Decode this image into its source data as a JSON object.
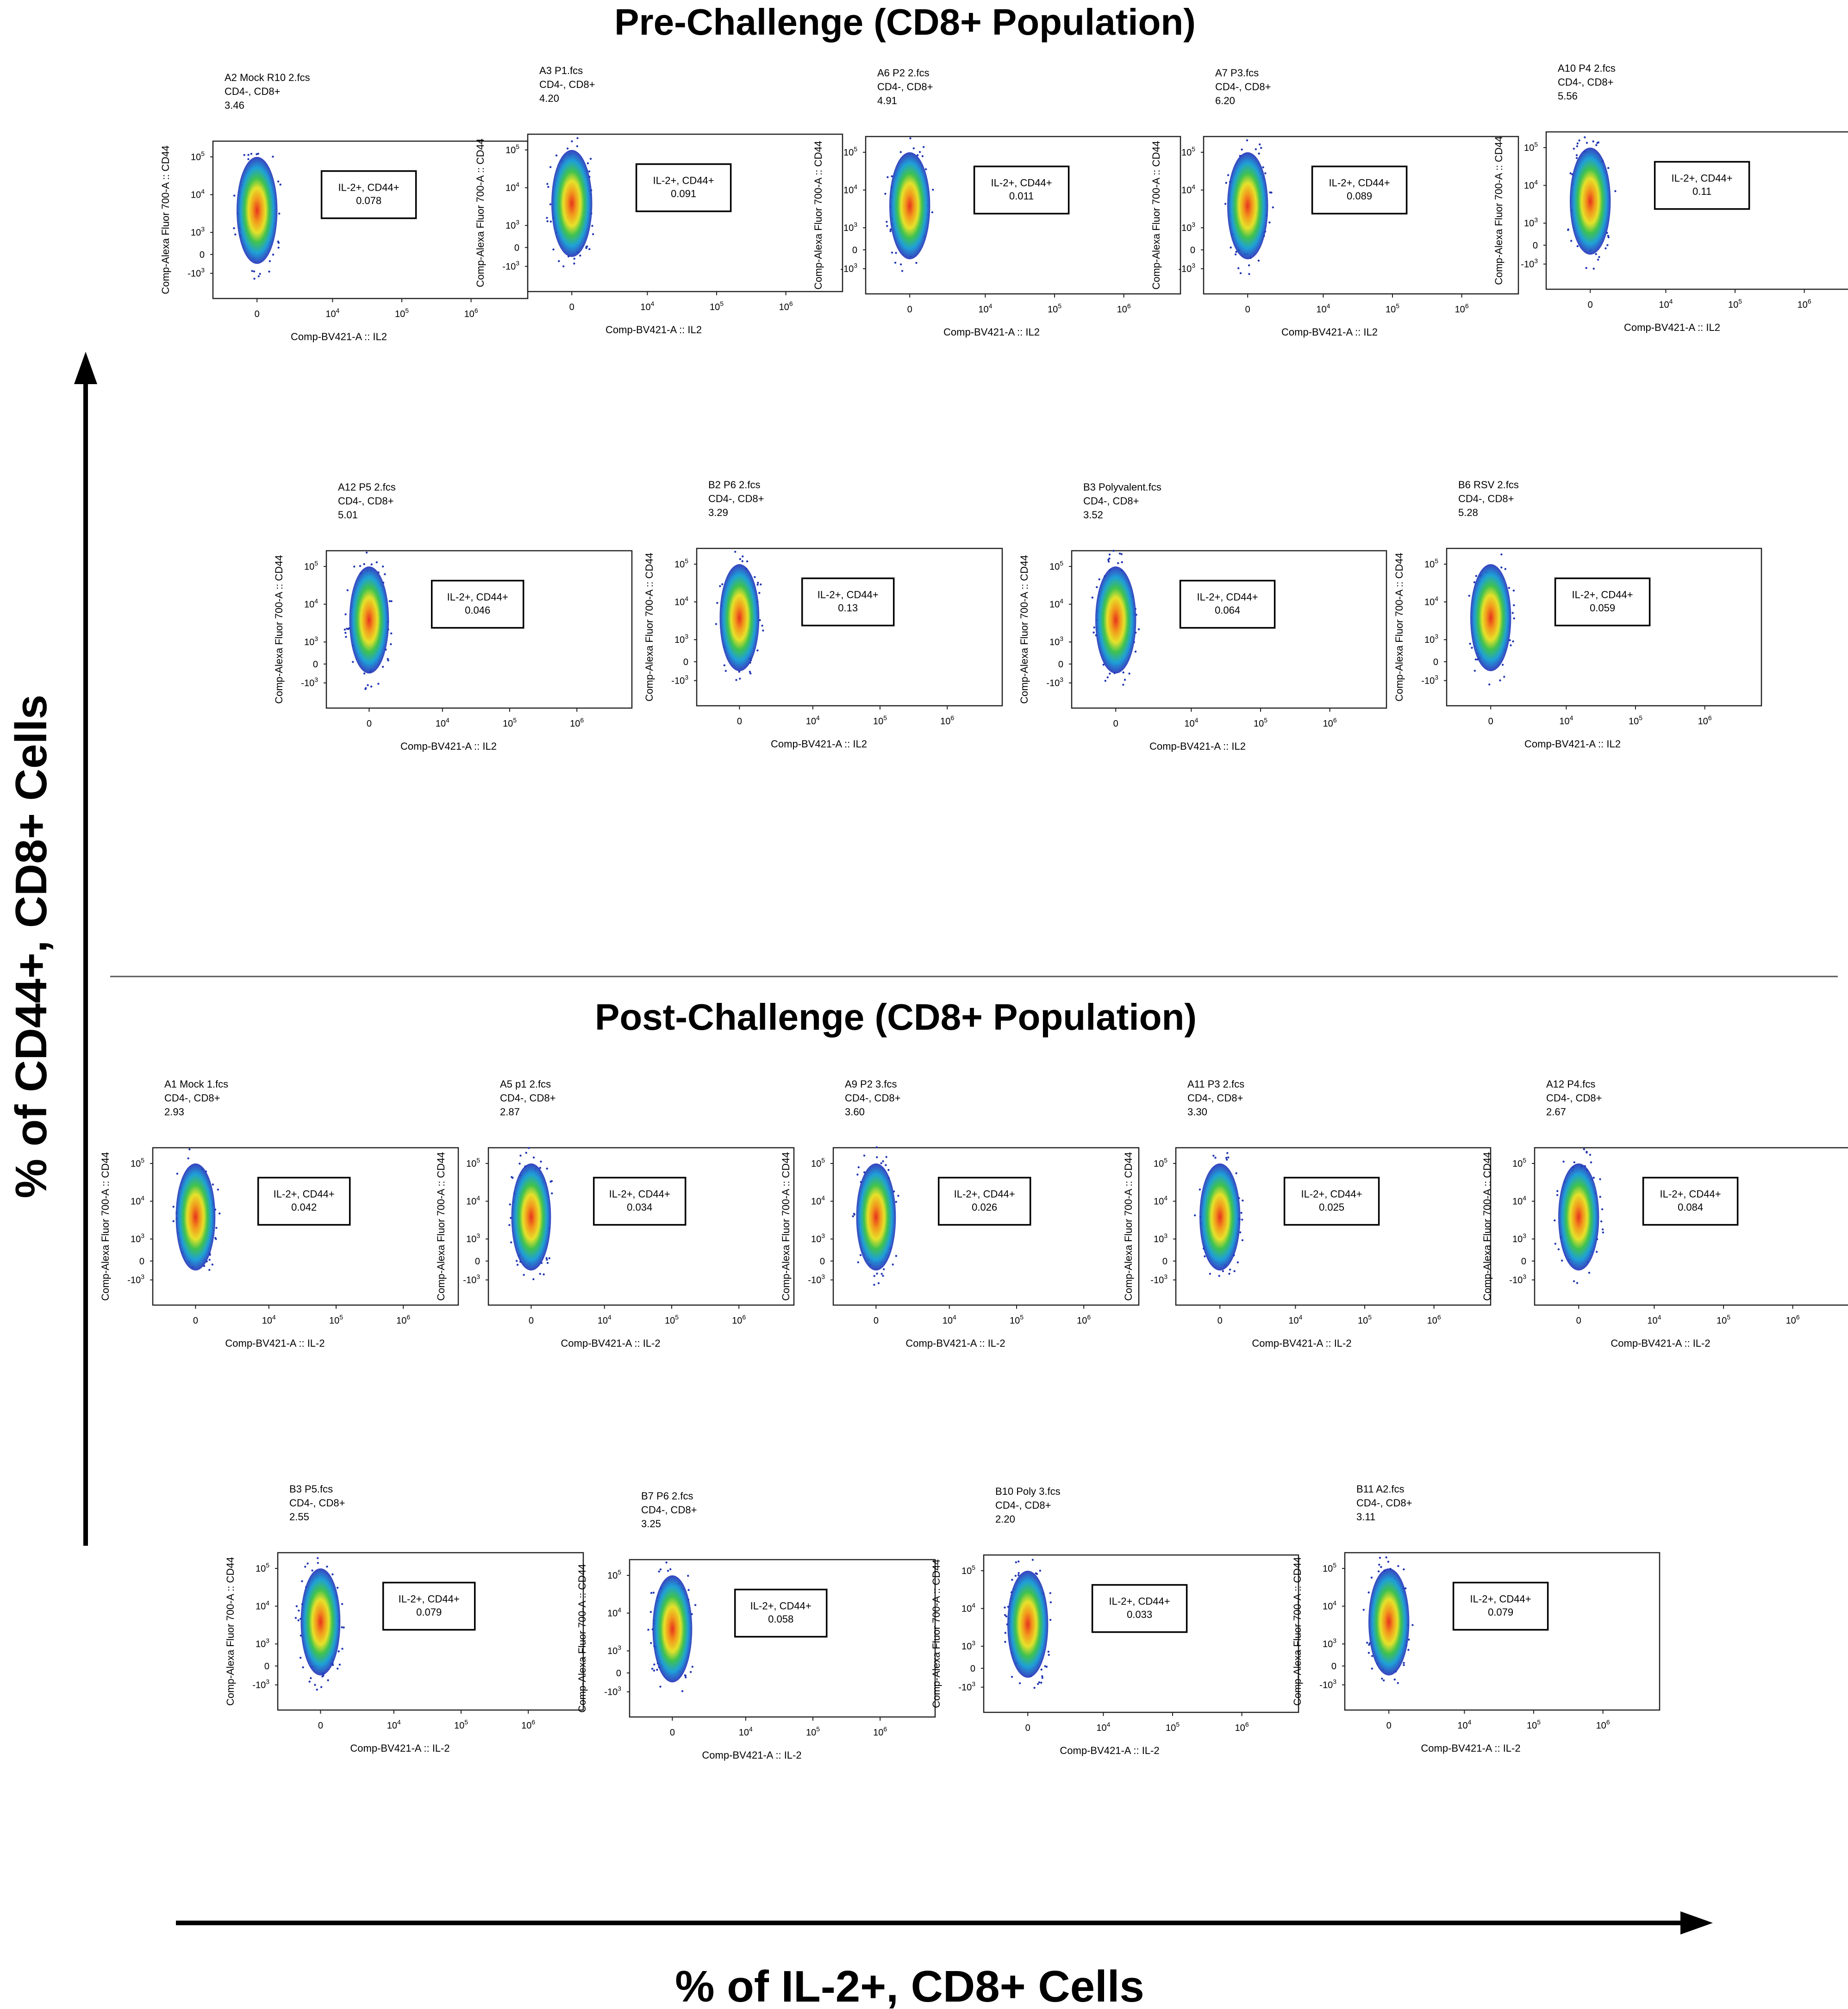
{
  "figure": {
    "pre_title": "Pre-Challenge (CD8+ Population)",
    "post_title": "Post-Challenge (CD8+ Population)",
    "y_axis_label": "% of CD44+, CD8+ Cells",
    "x_axis_label": "% of IL-2+, CD8+ Cells",
    "population": "CD4-, CD8+",
    "gate_name": "IL-2+, CD44+",
    "y_param": "Comp-Alexa Fluor 700-A :: CD44",
    "x_ticks": [
      "0",
      "10",
      "10",
      "10"
    ],
    "x_tick_exp": [
      "",
      "4",
      "5",
      "6"
    ],
    "y_ticks": [
      "10",
      "10",
      "10",
      "0",
      "-10"
    ],
    "y_tick_exp": [
      "5",
      "4",
      "3",
      "",
      "3"
    ]
  },
  "chart_data": [
    {
      "type": "scatter",
      "panel": "pre-1",
      "group": "Pre-Challenge",
      "sample": "A2 Mock R10 2.fcs",
      "population": "CD4-, CD8+",
      "parent_percent": "3.46",
      "gate": "IL-2+, CD44+",
      "gate_percent": "0.078",
      "xlabel": "Comp-BV421-A :: IL2",
      "ylabel": "Comp-Alexa Fluor 700-A :: CD44"
    },
    {
      "type": "scatter",
      "panel": "pre-2",
      "group": "Pre-Challenge",
      "sample": "A3 P1.fcs",
      "population": "CD4-, CD8+",
      "parent_percent": "4.20",
      "gate": "IL-2+, CD44+",
      "gate_percent": "0.091",
      "xlabel": "Comp-BV421-A :: IL2",
      "ylabel": "Comp-Alexa Fluor 700-A :: CD44"
    },
    {
      "type": "scatter",
      "panel": "pre-3",
      "group": "Pre-Challenge",
      "sample": "A6 P2 2.fcs",
      "population": "CD4-, CD8+",
      "parent_percent": "4.91",
      "gate": "IL-2+, CD44+",
      "gate_percent": "0.011",
      "xlabel": "Comp-BV421-A :: IL2",
      "ylabel": "Comp-Alexa Fluor 700-A :: CD44"
    },
    {
      "type": "scatter",
      "panel": "pre-4",
      "group": "Pre-Challenge",
      "sample": "A7 P3.fcs",
      "population": "CD4-, CD8+",
      "parent_percent": "6.20",
      "gate": "IL-2+, CD44+",
      "gate_percent": "0.089",
      "xlabel": "Comp-BV421-A :: IL2",
      "ylabel": "Comp-Alexa Fluor 700-A :: CD44"
    },
    {
      "type": "scatter",
      "panel": "pre-5",
      "group": "Pre-Challenge",
      "sample": "A10 P4 2.fcs",
      "population": "CD4-, CD8+",
      "parent_percent": "5.56",
      "gate": "IL-2+, CD44+",
      "gate_percent": "0.11",
      "xlabel": "Comp-BV421-A :: IL2",
      "ylabel": "Comp-Alexa Fluor 700-A :: CD44"
    },
    {
      "type": "scatter",
      "panel": "pre-6",
      "group": "Pre-Challenge",
      "sample": "A12 P5 2.fcs",
      "population": "CD4-, CD8+",
      "parent_percent": "5.01",
      "gate": "IL-2+, CD44+",
      "gate_percent": "0.046",
      "xlabel": "Comp-BV421-A :: IL2",
      "ylabel": "Comp-Alexa Fluor 700-A :: CD44"
    },
    {
      "type": "scatter",
      "panel": "pre-7",
      "group": "Pre-Challenge",
      "sample": "B2 P6 2.fcs",
      "population": "CD4-, CD8+",
      "parent_percent": "3.29",
      "gate": "IL-2+, CD44+",
      "gate_percent": "0.13",
      "xlabel": "Comp-BV421-A :: IL2",
      "ylabel": "Comp-Alexa Fluor 700-A :: CD44"
    },
    {
      "type": "scatter",
      "panel": "pre-8",
      "group": "Pre-Challenge",
      "sample": "B3 Polyvalent.fcs",
      "population": "CD4-, CD8+",
      "parent_percent": "3.52",
      "gate": "IL-2+, CD44+",
      "gate_percent": "0.064",
      "xlabel": "Comp-BV421-A :: IL2",
      "ylabel": "Comp-Alexa Fluor 700-A :: CD44"
    },
    {
      "type": "scatter",
      "panel": "pre-9",
      "group": "Pre-Challenge",
      "sample": "B6 RSV 2.fcs",
      "population": "CD4-, CD8+",
      "parent_percent": "5.28",
      "gate": "IL-2+, CD44+",
      "gate_percent": "0.059",
      "xlabel": "Comp-BV421-A :: IL2",
      "ylabel": "Comp-Alexa Fluor 700-A :: CD44"
    },
    {
      "type": "scatter",
      "panel": "post-1",
      "group": "Post-Challenge",
      "sample": "A1 Mock 1.fcs",
      "population": "CD4-, CD8+",
      "parent_percent": "2.93",
      "gate": "IL-2+, CD44+",
      "gate_percent": "0.042",
      "xlabel": "Comp-BV421-A :: IL-2",
      "ylabel": "Comp-Alexa Fluor 700-A :: CD44"
    },
    {
      "type": "scatter",
      "panel": "post-2",
      "group": "Post-Challenge",
      "sample": "A5 p1 2.fcs",
      "population": "CD4-, CD8+",
      "parent_percent": "2.87",
      "gate": "IL-2+, CD44+",
      "gate_percent": "0.034",
      "xlabel": "Comp-BV421-A :: IL-2",
      "ylabel": "Comp-Alexa Fluor 700-A :: CD44"
    },
    {
      "type": "scatter",
      "panel": "post-3",
      "group": "Post-Challenge",
      "sample": "A9 P2 3.fcs",
      "population": "CD4-, CD8+",
      "parent_percent": "3.60",
      "gate": "IL-2+, CD44+",
      "gate_percent": "0.026",
      "xlabel": "Comp-BV421-A :: IL-2",
      "ylabel": "Comp-Alexa Fluor 700-A :: CD44"
    },
    {
      "type": "scatter",
      "panel": "post-4",
      "group": "Post-Challenge",
      "sample": "A11 P3 2.fcs",
      "population": "CD4-, CD8+",
      "parent_percent": "3.30",
      "gate": "IL-2+, CD44+",
      "gate_percent": "0.025",
      "xlabel": "Comp-BV421-A :: IL-2",
      "ylabel": "Comp-Alexa Fluor 700-A :: CD44"
    },
    {
      "type": "scatter",
      "panel": "post-5",
      "group": "Post-Challenge",
      "sample": "A12 P4.fcs",
      "population": "CD4-, CD8+",
      "parent_percent": "2.67",
      "gate": "IL-2+, CD44+",
      "gate_percent": "0.084",
      "xlabel": "Comp-BV421-A :: IL-2",
      "ylabel": "Comp-Alexa Fluor 700-A :: CD44"
    },
    {
      "type": "scatter",
      "panel": "post-6",
      "group": "Post-Challenge",
      "sample": "B3 P5.fcs",
      "population": "CD4-, CD8+",
      "parent_percent": "2.55",
      "gate": "IL-2+, CD44+",
      "gate_percent": "0.079",
      "xlabel": "Comp-BV421-A :: IL-2",
      "ylabel": "Comp-Alexa Fluor 700-A :: CD44"
    },
    {
      "type": "scatter",
      "panel": "post-7",
      "group": "Post-Challenge",
      "sample": "B7 P6 2.fcs",
      "population": "CD4-, CD8+",
      "parent_percent": "3.25",
      "gate": "IL-2+, CD44+",
      "gate_percent": "0.058",
      "xlabel": "Comp-BV421-A :: IL-2",
      "ylabel": "Comp-Alexa Fluor 700-A :: CD44"
    },
    {
      "type": "scatter",
      "panel": "post-8",
      "group": "Post-Challenge",
      "sample": "B10 Poly 3.fcs",
      "population": "CD4-, CD8+",
      "parent_percent": "2.20",
      "gate": "IL-2+, CD44+",
      "gate_percent": "0.033",
      "xlabel": "Comp-BV421-A :: IL-2",
      "ylabel": "Comp-Alexa Fluor 700-A :: CD44"
    },
    {
      "type": "scatter",
      "panel": "post-9",
      "group": "Post-Challenge",
      "sample": "B11 A2.fcs",
      "population": "CD4-, CD8+",
      "parent_percent": "3.11",
      "gate": "IL-2+, CD44+",
      "gate_percent": "0.079",
      "xlabel": "Comp-BV421-A :: IL-2",
      "ylabel": "Comp-Alexa Fluor 700-A :: CD44"
    }
  ]
}
